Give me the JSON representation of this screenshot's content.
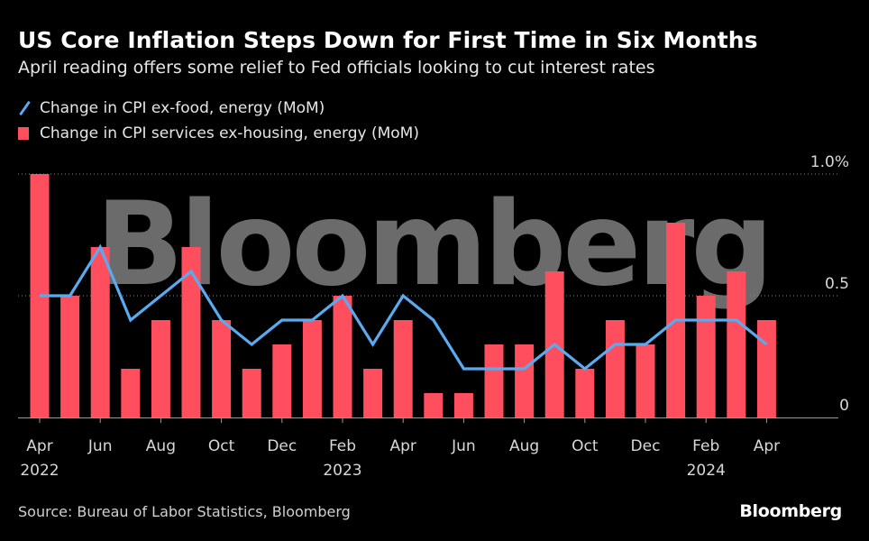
{
  "header": {
    "title": "US Core Inflation Steps Down for First Time in Six Months",
    "subtitle": "April reading offers some relief to Fed officials looking to cut interest rates"
  },
  "footer": {
    "source": "Source: Bureau of Labor Statistics, Bloomberg",
    "brand": "Bloomberg"
  },
  "watermark": "Bloomberg",
  "colors": {
    "line": "#5aaaf0",
    "bar": "#ff4f5e",
    "grid": "#8a8a8a"
  },
  "chart_data": {
    "type": "bar",
    "x": [
      "Apr 2022",
      "May 2022",
      "Jun 2022",
      "Jul 2022",
      "Aug 2022",
      "Sep 2022",
      "Oct 2022",
      "Nov 2022",
      "Dec 2022",
      "Jan 2023",
      "Feb 2023",
      "Mar 2023",
      "Apr 2023",
      "May 2023",
      "Jun 2023",
      "Jul 2023",
      "Aug 2023",
      "Sep 2023",
      "Oct 2023",
      "Nov 2023",
      "Dec 2023",
      "Jan 2024",
      "Feb 2024",
      "Mar 2024",
      "Apr 2024"
    ],
    "series": [
      {
        "name": "Change in CPI ex-food, energy (MoM)",
        "type": "line",
        "values": [
          0.5,
          0.5,
          0.7,
          0.4,
          0.5,
          0.6,
          0.4,
          0.3,
          0.4,
          0.4,
          0.5,
          0.3,
          0.5,
          0.4,
          0.2,
          0.2,
          0.2,
          0.3,
          0.2,
          0.3,
          0.3,
          0.4,
          0.4,
          0.4,
          0.3
        ]
      },
      {
        "name": "Change in CPI services ex-housing, energy (MoM)",
        "type": "bar",
        "values": [
          1.0,
          0.5,
          0.7,
          0.2,
          0.4,
          0.7,
          0.4,
          0.2,
          0.3,
          0.4,
          0.5,
          0.2,
          0.4,
          0.1,
          0.1,
          0.3,
          0.3,
          0.6,
          0.2,
          0.4,
          0.3,
          0.8,
          0.5,
          0.6,
          0.4
        ]
      }
    ],
    "ylim": [
      0,
      1.0
    ],
    "y_ticks": [
      {
        "value": 0,
        "label": "0"
      },
      {
        "value": 0.5,
        "label": "0.5"
      },
      {
        "value": 1.0,
        "label": "1.0%"
      }
    ],
    "x_ticks": [
      {
        "index": 0,
        "label": "Apr",
        "year": "2022"
      },
      {
        "index": 2,
        "label": "Jun",
        "year": ""
      },
      {
        "index": 4,
        "label": "Aug",
        "year": ""
      },
      {
        "index": 6,
        "label": "Oct",
        "year": ""
      },
      {
        "index": 8,
        "label": "Dec",
        "year": ""
      },
      {
        "index": 10,
        "label": "Feb",
        "year": "2023"
      },
      {
        "index": 12,
        "label": "Apr",
        "year": ""
      },
      {
        "index": 14,
        "label": "Jun",
        "year": ""
      },
      {
        "index": 16,
        "label": "Aug",
        "year": ""
      },
      {
        "index": 18,
        "label": "Oct",
        "year": ""
      },
      {
        "index": 20,
        "label": "Dec",
        "year": ""
      },
      {
        "index": 22,
        "label": "Feb",
        "year": "2024"
      },
      {
        "index": 24,
        "label": "Apr",
        "year": ""
      }
    ],
    "grid": true,
    "legend_position": "top-left"
  }
}
